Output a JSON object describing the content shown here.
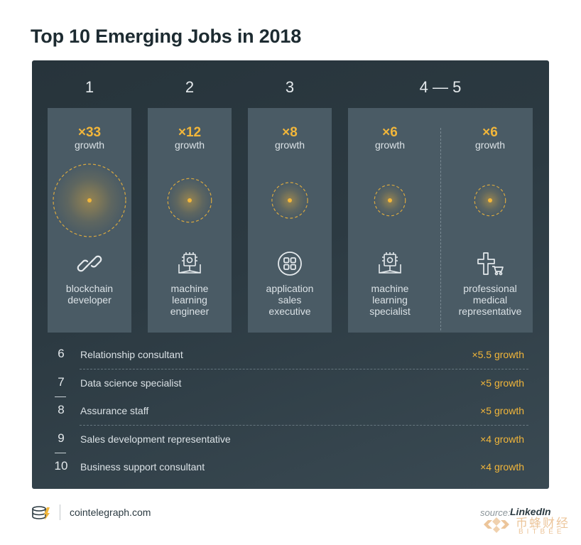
{
  "title": "Top 10 Emerging Jobs in 2018",
  "chart_data": {
    "type": "table",
    "title": "Top 10 Emerging Jobs in 2018",
    "rank_headers": [
      "1",
      "2",
      "3",
      "4 — 5"
    ],
    "growth_word": "growth",
    "top": [
      {
        "rank": "1",
        "multiplier": "×33",
        "value": 33,
        "job": [
          "blockchain",
          "developer"
        ],
        "icon": "chain-link-icon"
      },
      {
        "rank": "2",
        "multiplier": "×12",
        "value": 12,
        "job": [
          "machine",
          "learning",
          "engineer"
        ],
        "icon": "chip-book-icon"
      },
      {
        "rank": "3",
        "multiplier": "×8",
        "value": 8,
        "job": [
          "application",
          "sales",
          "executive"
        ],
        "icon": "app-grid-icon"
      },
      {
        "rank": "4",
        "multiplier": "×6",
        "value": 6,
        "job": [
          "machine",
          "learning",
          "specialist"
        ],
        "icon": "chip-book-icon"
      },
      {
        "rank": "5",
        "multiplier": "×6",
        "value": 6,
        "job": [
          "professional",
          "medical",
          "representative"
        ],
        "icon": "medical-cart-icon"
      }
    ],
    "rest": [
      {
        "rank": "6",
        "job": "Relationship consultant",
        "growth": "×5.5 growth",
        "value": 5.5
      },
      {
        "rank": "7",
        "job": "Data science specialist",
        "growth": "×5 growth",
        "value": 5
      },
      {
        "rank": "8",
        "job": "Assurance staff",
        "growth": "×5 growth",
        "value": 5
      },
      {
        "rank": "9",
        "job": "Sales development representative",
        "growth": "×4 growth",
        "value": 4
      },
      {
        "rank": "10",
        "job": "Business support consultant",
        "growth": "×4 growth",
        "value": 4
      }
    ]
  },
  "footer": {
    "site": "cointelegraph.com",
    "source_prefix": "source:",
    "source_name": "LinkedIn",
    "watermark_cn": "币蜂财经",
    "watermark_en": "BITBEE"
  },
  "colors": {
    "accent": "#f2b63a",
    "panel": "#2c3a42",
    "card": "#4a5b65",
    "title": "#1d2b31"
  }
}
